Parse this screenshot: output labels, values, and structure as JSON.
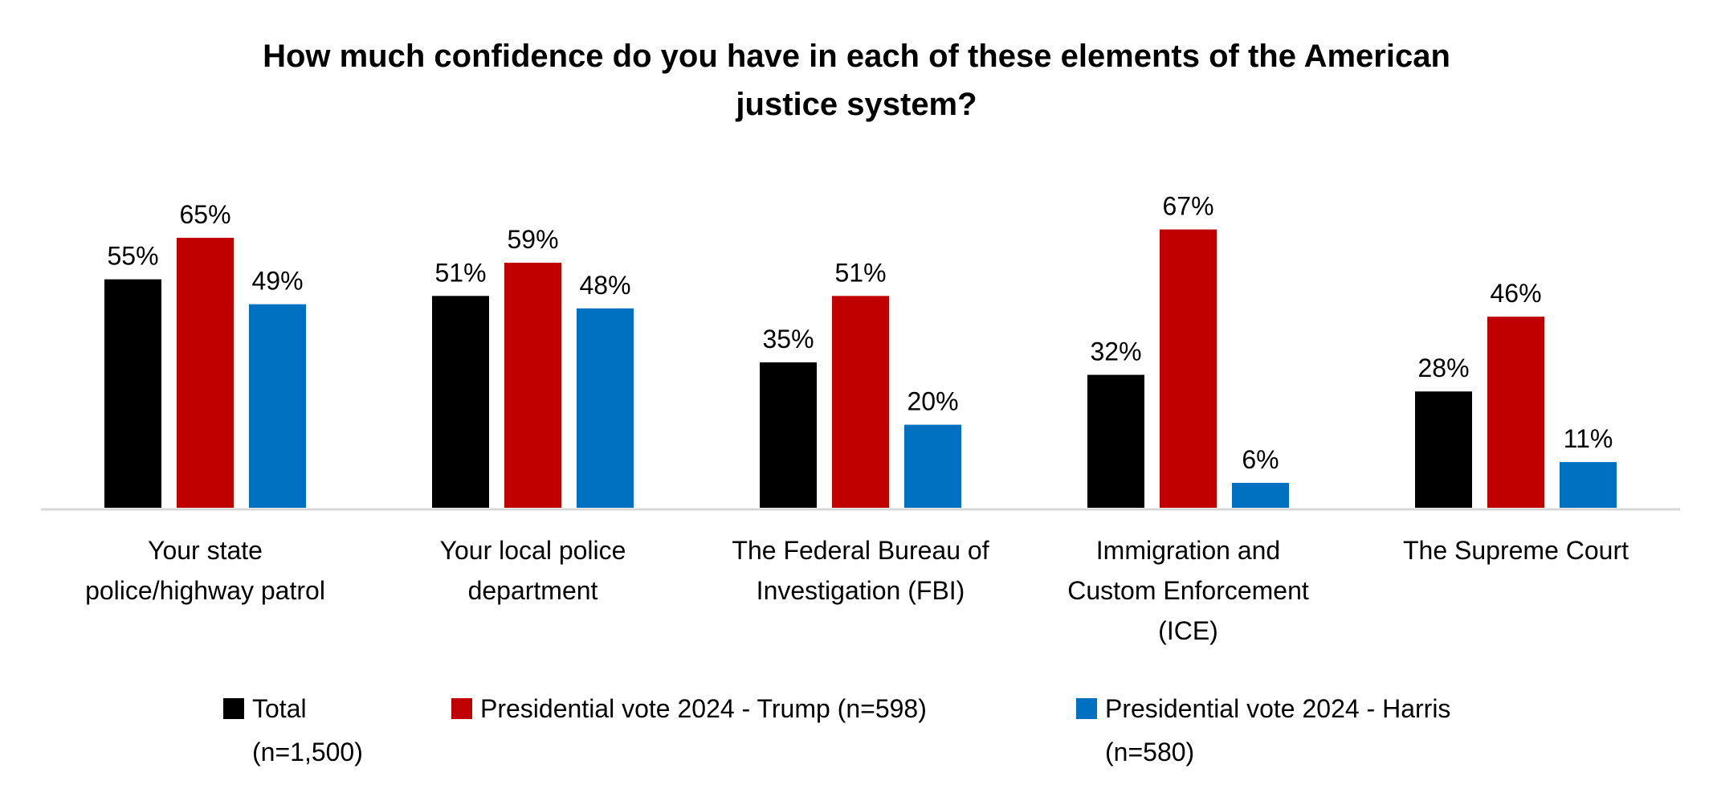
{
  "chart_data": {
    "type": "bar",
    "title": [
      "How much confidence do you have in each of these elements of the American",
      "justice system?"
    ],
    "categories": [
      [
        "Your state",
        "police/highway patrol"
      ],
      [
        "Your local police",
        "department"
      ],
      [
        "The Federal Bureau of",
        "Investigation (FBI)"
      ],
      [
        "Immigration and",
        "Custom Enforcement",
        "(ICE)"
      ],
      [
        "The Supreme Court"
      ]
    ],
    "series": [
      {
        "name": [
          "Total",
          "(n=1,500)"
        ],
        "color": "#000000",
        "values": [
          55,
          51,
          35,
          32,
          28
        ],
        "labels": [
          "55%",
          "51%",
          "35%",
          "32%",
          "28%"
        ]
      },
      {
        "name": [
          "Presidential vote 2024 - Trump (n=598)"
        ],
        "color": "#C00000",
        "values": [
          65,
          59,
          51,
          67,
          46
        ],
        "labels": [
          "65%",
          "59%",
          "51%",
          "67%",
          "46%"
        ]
      },
      {
        "name": [
          "Presidential vote 2024 - Harris",
          "(n=580)"
        ],
        "color": "#0070C0",
        "values": [
          49,
          48,
          20,
          6,
          11
        ],
        "labels": [
          "49%",
          "48%",
          "20%",
          "6%",
          "11%"
        ]
      }
    ],
    "xlabel": "",
    "ylabel": "",
    "ylim": [
      0,
      70
    ],
    "grid": false,
    "legend": "bottom"
  }
}
